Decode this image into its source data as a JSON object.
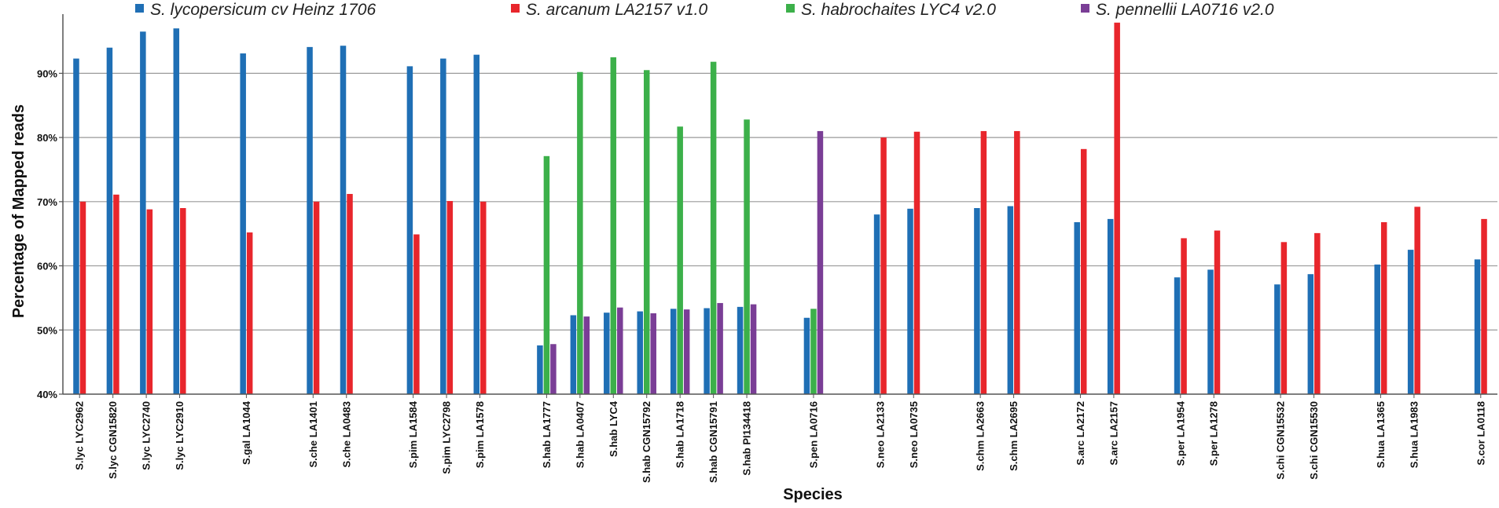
{
  "chart_data": {
    "type": "bar",
    "title": "",
    "xlabel": "Species",
    "ylabel": "Percentage of Mapped reads",
    "ylim": [
      40,
      98
    ],
    "yticks": [
      40,
      50,
      60,
      70,
      80,
      90
    ],
    "ytick_labels": [
      "40%",
      "50%",
      "60%",
      "70%",
      "80%",
      "90%"
    ],
    "grid": true,
    "legend_position": "top",
    "series": [
      {
        "name": "S. lycopersicum cv Heinz 1706",
        "color": "#1f6fb5"
      },
      {
        "name": "S. arcanum LA2157 v1.0",
        "color": "#e8262c"
      },
      {
        "name": "S. habrochaites LYC4 v2.0",
        "color": "#3cb04a"
      },
      {
        "name": "S. pennellii LA0716 v2.0",
        "color": "#7a3e96"
      }
    ],
    "groups": [
      {
        "categories": [
          "S.lyc LYC2962",
          "S.lyc CGN15820",
          "S.lyc LYC2740",
          "S.lyc LYC2910"
        ],
        "values": {
          "S. lycopersicum cv Heinz 1706": [
            92.3,
            94.0,
            96.5,
            97.0
          ],
          "S. arcanum LA2157 v1.0": [
            70.0,
            71.1,
            68.8,
            69.0
          ]
        }
      },
      {
        "categories": [
          "S.gal LA1044"
        ],
        "values": {
          "S. lycopersicum cv Heinz 1706": [
            93.1
          ],
          "S. arcanum LA2157 v1.0": [
            65.2
          ]
        }
      },
      {
        "categories": [
          "S.che LA1401",
          "S.che LA0483"
        ],
        "values": {
          "S. lycopersicum cv Heinz 1706": [
            94.1,
            94.3
          ],
          "S. arcanum LA2157 v1.0": [
            70.0,
            71.2
          ]
        }
      },
      {
        "categories": [
          "S.pim LA1584",
          "S.pim LYC2798",
          "S.pim LA1578"
        ],
        "values": {
          "S. lycopersicum cv Heinz 1706": [
            91.1,
            92.3,
            92.9
          ],
          "S. arcanum LA2157 v1.0": [
            64.9,
            70.1,
            70.0
          ]
        }
      },
      {
        "categories": [
          "S.hab LA1777",
          "S.hab LA0407",
          "S.hab LYC4",
          "S.hab CGN15792",
          "S.hab LA1718",
          "S.hab CGN15791",
          "S.hab PI134418"
        ],
        "values": {
          "S. lycopersicum cv Heinz 1706": [
            47.6,
            52.3,
            52.7,
            52.9,
            53.3,
            53.4,
            53.6
          ],
          "S. habrochaites LYC4 v2.0": [
            77.1,
            90.2,
            92.5,
            90.5,
            81.7,
            91.8,
            82.8
          ],
          "S. pennellii LA0716 v2.0": [
            47.8,
            52.1,
            53.5,
            52.6,
            53.2,
            54.2,
            54.0
          ]
        }
      },
      {
        "categories": [
          "S.pen LA0716"
        ],
        "values": {
          "S. lycopersicum cv Heinz 1706": [
            51.9
          ],
          "S. habrochaites LYC4 v2.0": [
            53.3
          ],
          "S. pennellii LA0716 v2.0": [
            81.0
          ]
        }
      },
      {
        "categories": [
          "S.neo LA2133",
          "S.neo LA0735"
        ],
        "values": {
          "S. lycopersicum cv Heinz 1706": [
            68.0,
            68.9
          ],
          "S. arcanum LA2157 v1.0": [
            80.0,
            80.9
          ]
        }
      },
      {
        "categories": [
          "S.chm LA2663",
          "S.chm LA2695"
        ],
        "values": {
          "S. lycopersicum cv Heinz 1706": [
            69.0,
            69.3
          ],
          "S. arcanum LA2157 v1.0": [
            81.0,
            81.0
          ]
        }
      },
      {
        "categories": [
          "S.arc LA2172",
          "S.arc LA2157"
        ],
        "values": {
          "S. lycopersicum cv Heinz 1706": [
            66.8,
            67.3
          ],
          "S. arcanum LA2157 v1.0": [
            78.2,
            97.9
          ]
        }
      },
      {
        "categories": [
          "S.per LA1954",
          "S.per LA1278"
        ],
        "values": {
          "S. lycopersicum cv Heinz 1706": [
            58.2,
            59.4
          ],
          "S. arcanum LA2157 v1.0": [
            64.3,
            65.5
          ]
        }
      },
      {
        "categories": [
          "S.chi CGN15532",
          "S.chi CGN15530"
        ],
        "values": {
          "S. lycopersicum cv Heinz 1706": [
            57.1,
            58.7
          ],
          "S. arcanum LA2157 v1.0": [
            63.7,
            65.1
          ]
        }
      },
      {
        "categories": [
          "S.hua LA1365",
          "S.hua LA1983"
        ],
        "values": {
          "S. lycopersicum cv Heinz 1706": [
            60.2,
            62.5
          ],
          "S. arcanum LA2157 v1.0": [
            66.8,
            69.2
          ]
        }
      },
      {
        "categories": [
          "S.cor LA0118"
        ],
        "values": {
          "S. lycopersicum cv Heinz 1706": [
            61.0
          ],
          "S. arcanum LA2157 v1.0": [
            67.3
          ]
        }
      }
    ]
  }
}
